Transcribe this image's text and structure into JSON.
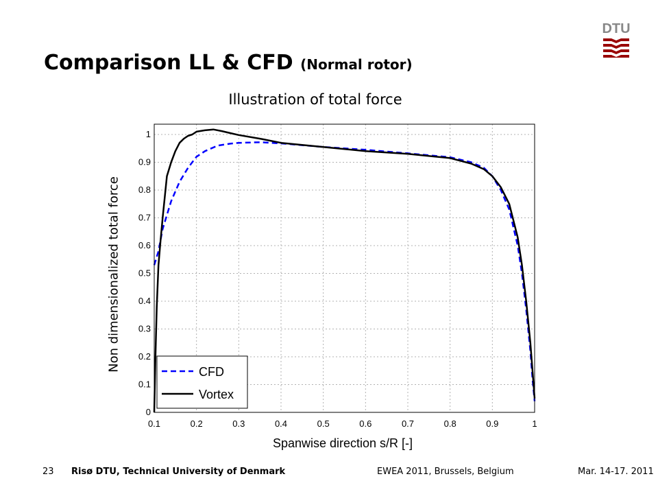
{
  "slide": {
    "title": "Comparison LL & CFD",
    "subtitle": "(Normal rotor)",
    "logo_text": "DTU"
  },
  "footer": {
    "page": "23",
    "organization": "Risø DTU, Technical University of Denmark",
    "event": "EWEA 2011, Brussels, Belgium",
    "date": "Mar. 14-17. 2011"
  },
  "colors": {
    "logo": "#990000",
    "cfd": "#0000ff",
    "vortex": "#000000",
    "grid": "#b0b0b0"
  },
  "chart_data": {
    "type": "line",
    "title": "Illustration of total force",
    "xlabel": "Spanwise direction s/R [-]",
    "ylabel": "Non dimensionalized total force",
    "xlim": [
      0.1,
      1.0
    ],
    "ylim": [
      0,
      1.05
    ],
    "xticks": [
      "0.1",
      "0.2",
      "0.3",
      "0.4",
      "0.5",
      "0.6",
      "0.7",
      "0.8",
      "0.9",
      "1"
    ],
    "yticks": [
      "0",
      "0.1",
      "0.2",
      "0.3",
      "0.4",
      "0.5",
      "0.6",
      "0.7",
      "0.8",
      "0.9",
      "1"
    ],
    "grid": true,
    "legend_position": "bottom-left",
    "series": [
      {
        "name": "CFD",
        "style": "dashed",
        "x": [
          0.1,
          0.11,
          0.12,
          0.14,
          0.16,
          0.18,
          0.2,
          0.22,
          0.25,
          0.28,
          0.3,
          0.35,
          0.4,
          0.5,
          0.6,
          0.7,
          0.8,
          0.85,
          0.88,
          0.9,
          0.92,
          0.94,
          0.96,
          0.97,
          0.98,
          0.99,
          0.995,
          1.0
        ],
        "y": [
          0.53,
          0.58,
          0.66,
          0.76,
          0.83,
          0.88,
          0.92,
          0.94,
          0.96,
          0.967,
          0.97,
          0.972,
          0.968,
          0.955,
          0.945,
          0.932,
          0.918,
          0.9,
          0.88,
          0.85,
          0.8,
          0.73,
          0.6,
          0.5,
          0.37,
          0.22,
          0.12,
          0.04
        ]
      },
      {
        "name": "Vortex",
        "style": "solid",
        "x": [
          0.1,
          0.103,
          0.106,
          0.11,
          0.115,
          0.12,
          0.13,
          0.14,
          0.15,
          0.16,
          0.17,
          0.18,
          0.19,
          0.2,
          0.22,
          0.24,
          0.26,
          0.28,
          0.3,
          0.35,
          0.4,
          0.5,
          0.6,
          0.7,
          0.8,
          0.85,
          0.88,
          0.9,
          0.92,
          0.94,
          0.96,
          0.97,
          0.98,
          0.99,
          0.995,
          1.0
        ],
        "y": [
          0.0,
          0.2,
          0.38,
          0.53,
          0.62,
          0.7,
          0.85,
          0.9,
          0.94,
          0.97,
          0.985,
          0.995,
          1.0,
          1.01,
          1.015,
          1.018,
          1.012,
          1.005,
          0.998,
          0.985,
          0.97,
          0.955,
          0.94,
          0.93,
          0.915,
          0.895,
          0.875,
          0.85,
          0.81,
          0.75,
          0.63,
          0.53,
          0.4,
          0.25,
          0.15,
          0.05
        ]
      }
    ]
  }
}
